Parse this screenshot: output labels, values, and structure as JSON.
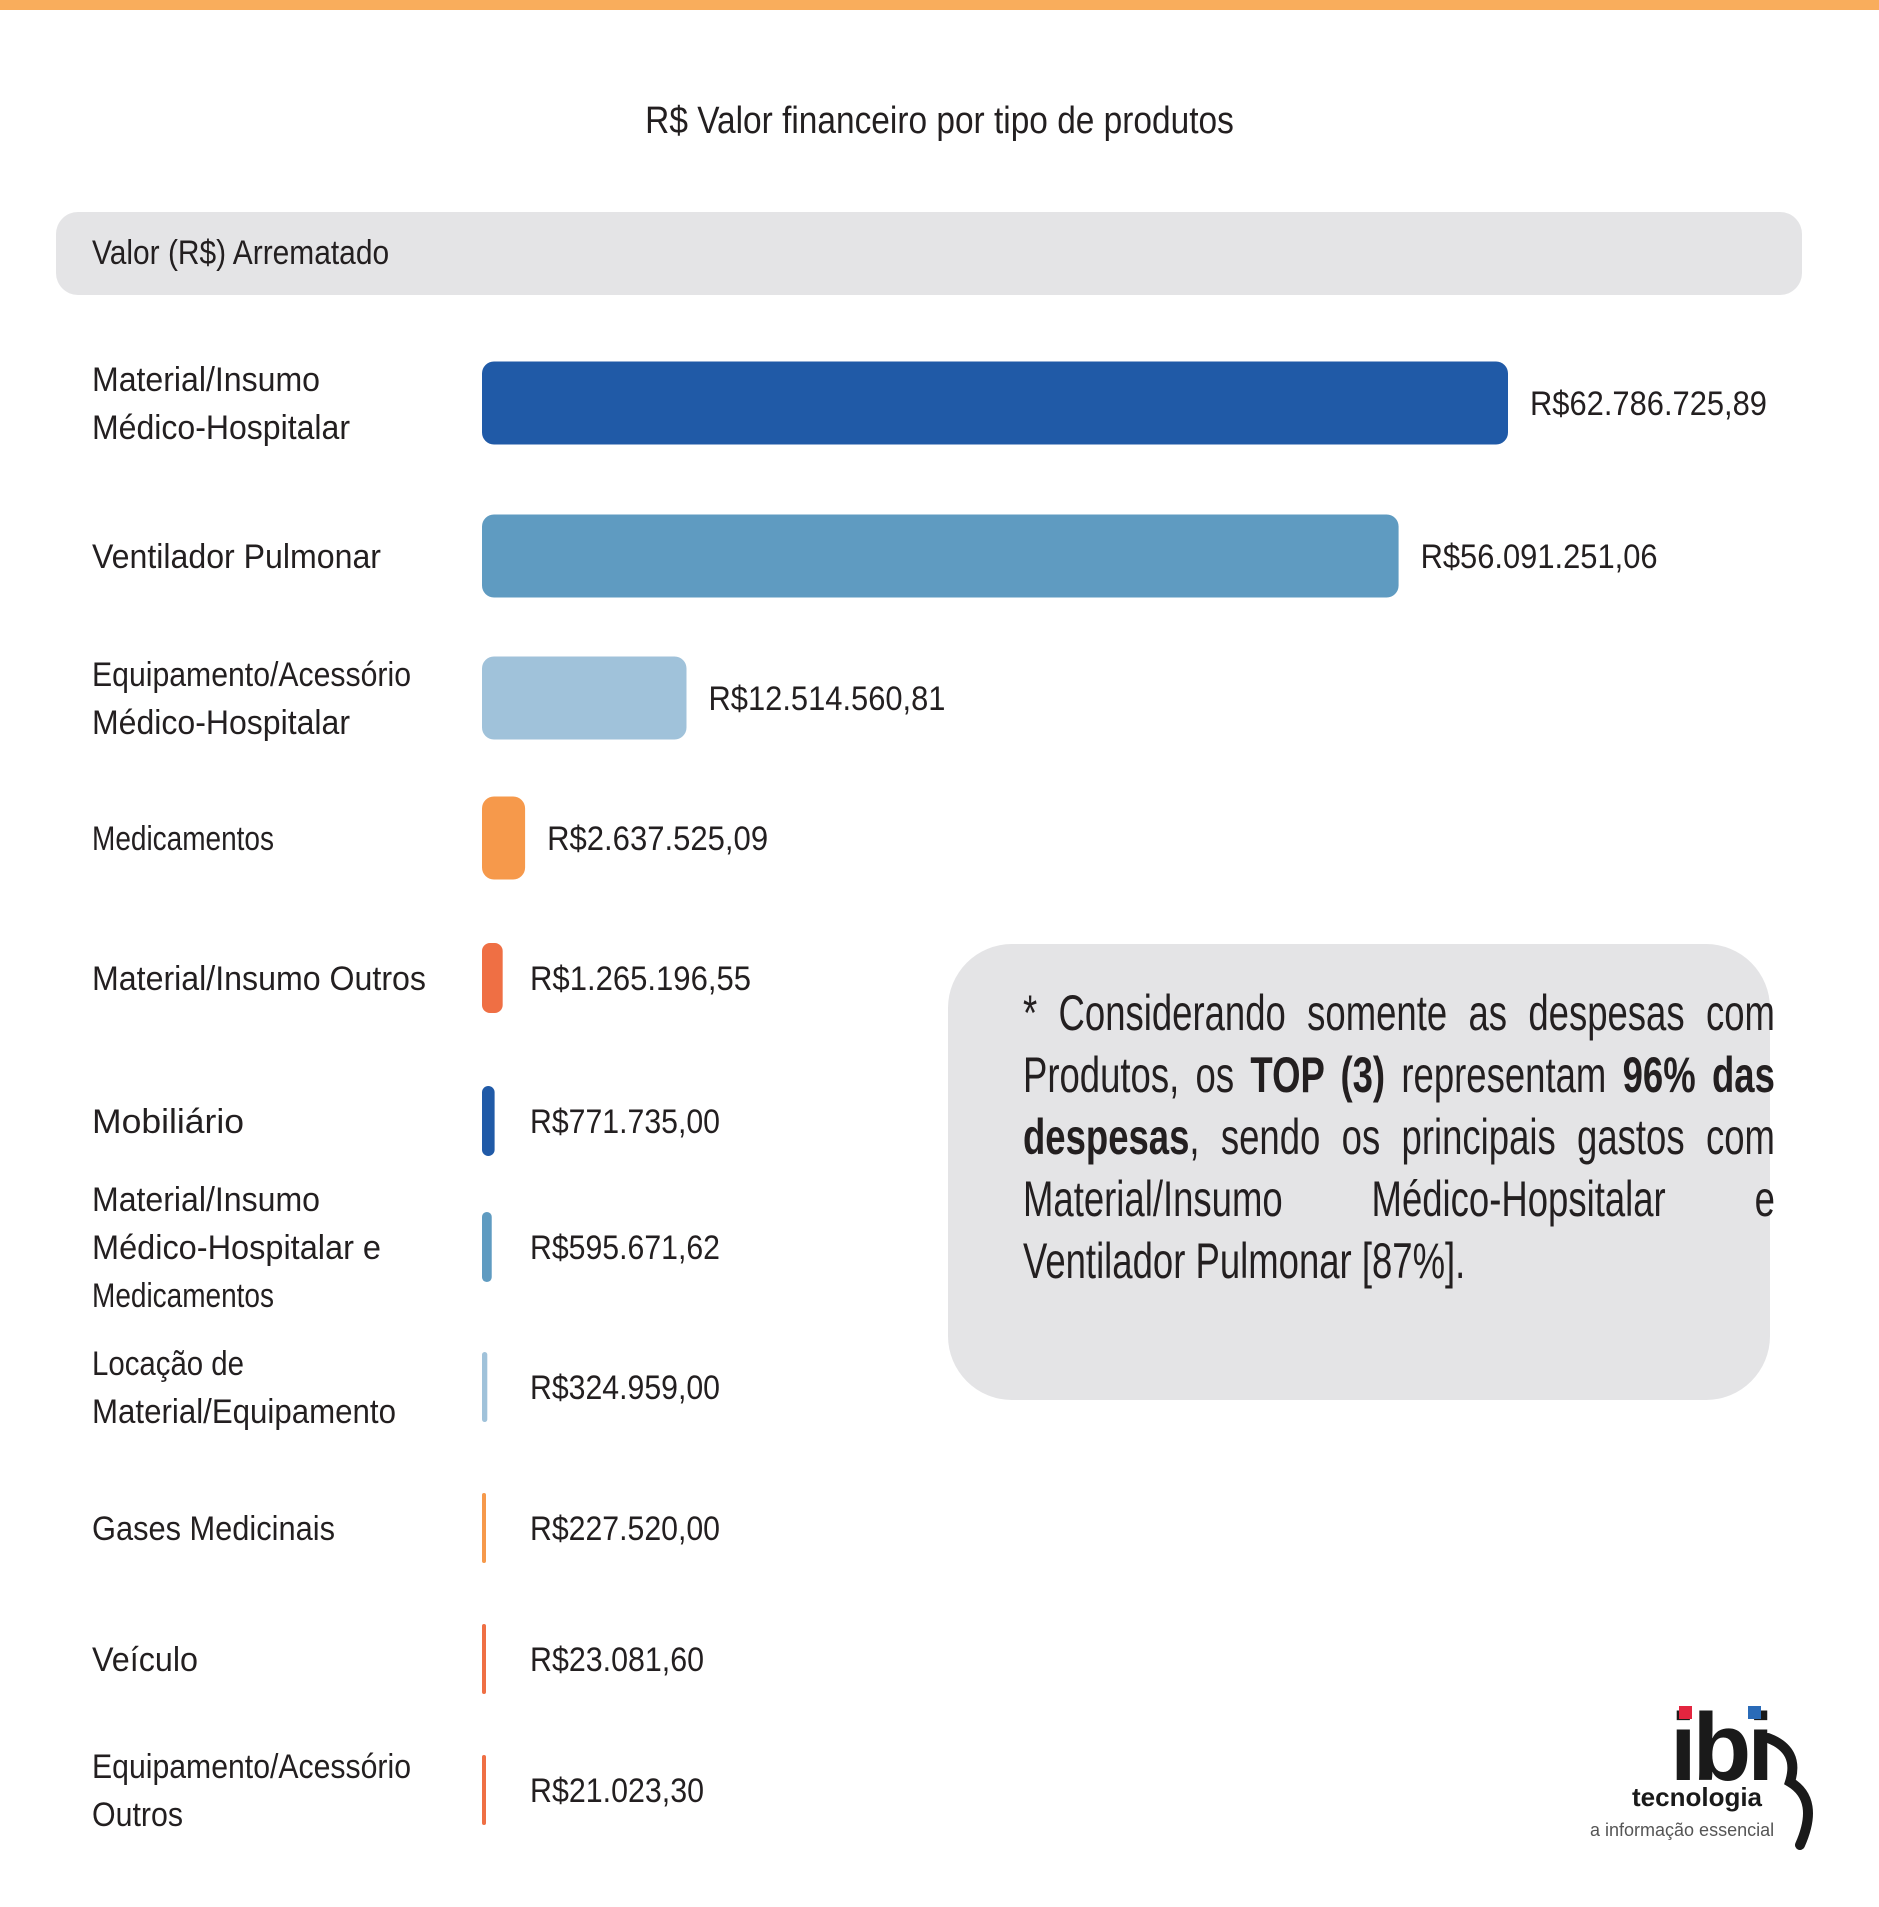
{
  "colors": {
    "accent_rule": "#f9ad5c",
    "panel": "#e4e4e6",
    "text": "#231f20"
  },
  "chart_data": {
    "type": "bar",
    "orientation": "horizontal",
    "title": "R$ Valor financeiro por tipo de produtos",
    "series_header": "Valor (R$) Arrematado",
    "xlabel": "",
    "ylabel": "",
    "grid": false,
    "categories": [
      [
        "Material/Insumo",
        "Médico-Hospitalar"
      ],
      [
        "Ventilador Pulmonar"
      ],
      [
        "Equipamento/Acessório",
        "Médico-Hospitalar"
      ],
      [
        "Medicamentos"
      ],
      [
        "Material/Insumo Outros"
      ],
      [
        "Mobiliário"
      ],
      [
        "Material/Insumo",
        "Médico-Hospitalar e",
        "Medicamentos"
      ],
      [
        "Locação de",
        "Material/Equipamento"
      ],
      [
        "Gases Medicinais"
      ],
      [
        "Veículo"
      ],
      [
        "Equipamento/Acessório",
        "Outros"
      ]
    ],
    "values": [
      62786725.89,
      56091251.06,
      12514560.81,
      2637525.09,
      1265196.55,
      771735.0,
      595671.62,
      324959.0,
      227520.0,
      23081.6,
      21023.3
    ],
    "value_labels": [
      "R$62.786.725,89",
      "R$56.091.251,06",
      "R$12.514.560,81",
      "R$2.637.525,09",
      "R$1.265.196,55",
      "R$771.735,00",
      "R$595.671,62",
      "R$324.959,00",
      "R$227.520,00",
      "R$23.081,60",
      "R$21.023,30"
    ],
    "colors": [
      "#205aa7",
      "#5f9bc1",
      "#a0c2da",
      "#f6994b",
      "#ef6f44",
      "#205aa7",
      "#5f9bc1",
      "#a0c2da",
      "#f6994b",
      "#ef6f44",
      "#ef6f44"
    ]
  },
  "note": {
    "segments": [
      {
        "text": "*  Considerando somente as despesas com Produtos, os ",
        "bold": false
      },
      {
        "text": "TOP (3)",
        "bold": true
      },
      {
        "text": " representam ",
        "bold": false
      },
      {
        "text": "96% das despesas",
        "bold": true
      },
      {
        "text": ", sendo os principais gastos com Material/Insumo Médico-Hopsitalar e Ventilador Pulmonar [87%].",
        "bold": false
      }
    ]
  },
  "logo": {
    "text": "ibi",
    "tagline_1": "tecnologia",
    "tagline_2": "a informação essencial"
  }
}
